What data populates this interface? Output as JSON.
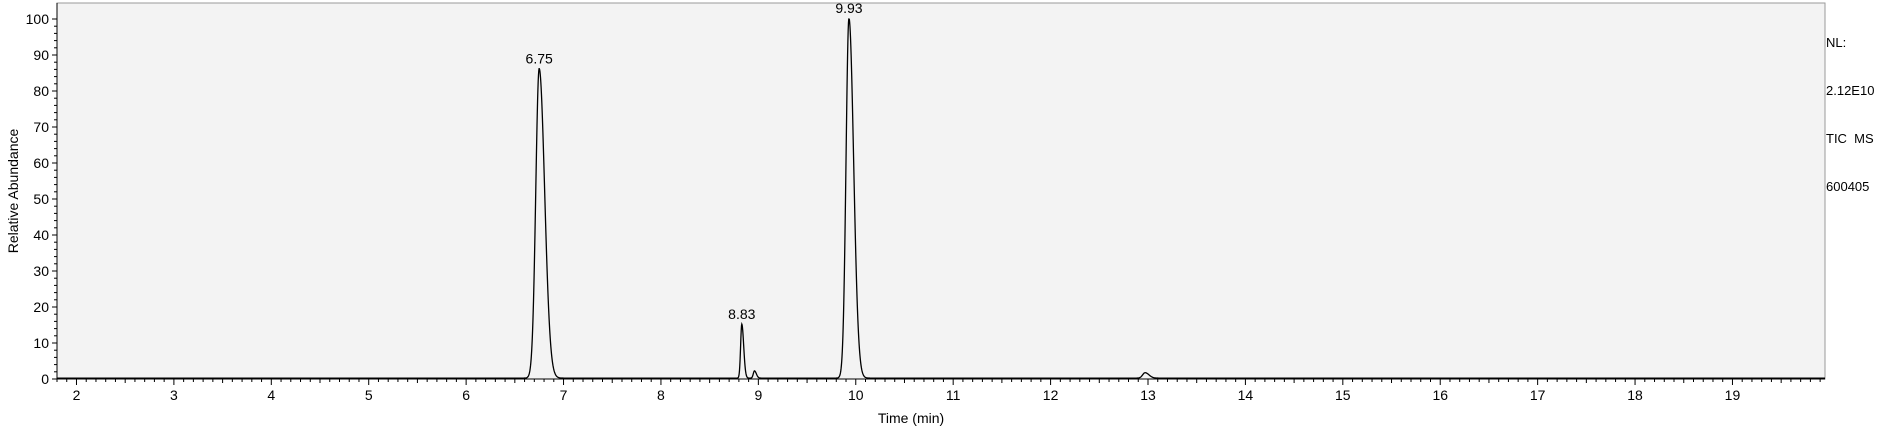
{
  "chart_data": {
    "type": "line",
    "xlabel": "Time (min)",
    "ylabel": "Relative Abundance",
    "xlim": [
      1.8,
      19.95
    ],
    "ylim": [
      0,
      100
    ],
    "x_ticks": [
      2,
      3,
      4,
      5,
      6,
      7,
      8,
      9,
      10,
      11,
      12,
      13,
      14,
      15,
      16,
      17,
      18,
      19
    ],
    "y_ticks": [
      0,
      10,
      20,
      30,
      40,
      50,
      60,
      70,
      80,
      90,
      100
    ],
    "grid": false,
    "background_color": "#f3f3f3",
    "line_color": "#000000",
    "info_lines": [
      "NL:",
      "2.12E10",
      "TIC  MS",
      "600405"
    ],
    "peaks": [
      {
        "rt": 6.75,
        "height": 86,
        "label": "6.75",
        "width": 0.035
      },
      {
        "rt": 8.83,
        "height": 15,
        "label": "8.83",
        "width": 0.012
      },
      {
        "rt": 8.96,
        "height": 2,
        "label": "",
        "width": 0.012
      },
      {
        "rt": 9.93,
        "height": 100,
        "label": "9.93",
        "width": 0.03
      },
      {
        "rt": 12.97,
        "height": 1.5,
        "label": "",
        "width": 0.025
      }
    ]
  }
}
